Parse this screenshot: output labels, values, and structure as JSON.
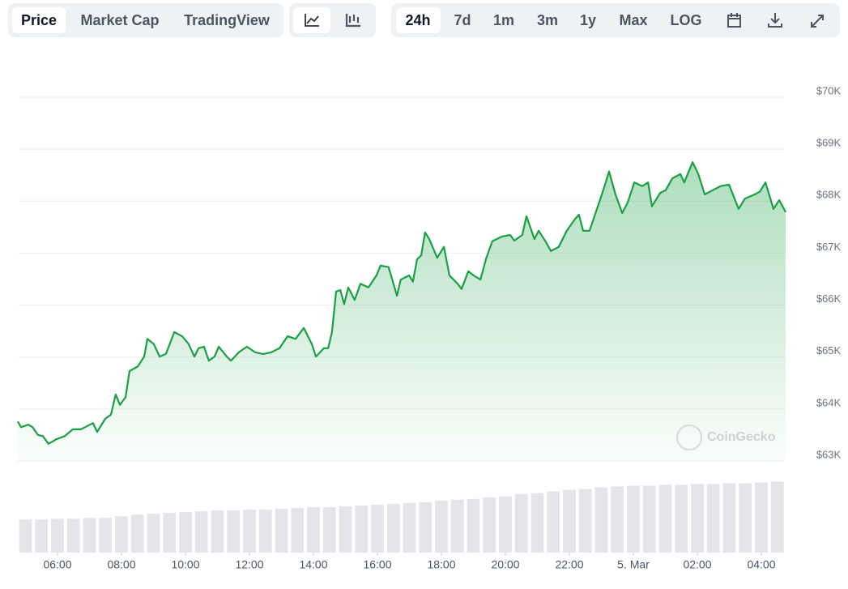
{
  "toolbar": {
    "view_tabs": [
      "Price",
      "Market Cap",
      "TradingView"
    ],
    "ranges": [
      "24h",
      "7d",
      "1m",
      "3m",
      "1y",
      "Max",
      "LOG"
    ]
  },
  "watermark": "CoinGecko",
  "chart_data": {
    "type": "area",
    "color": "#18a043",
    "grid": true,
    "xlim": [
      4.76,
      28.76
    ],
    "xticks": [
      {
        "value": 6,
        "label": "06:00"
      },
      {
        "value": 8,
        "label": "08:00"
      },
      {
        "value": 10,
        "label": "10:00"
      },
      {
        "value": 12,
        "label": "12:00"
      },
      {
        "value": 14,
        "label": "14:00"
      },
      {
        "value": 16,
        "label": "16:00"
      },
      {
        "value": 18,
        "label": "18:00"
      },
      {
        "value": 20,
        "label": "20:00"
      },
      {
        "value": 22,
        "label": "22:00"
      },
      {
        "value": 24,
        "label": "5. Mar"
      },
      {
        "value": 26,
        "label": "02:00"
      },
      {
        "value": 28,
        "label": "04:00"
      }
    ],
    "ylim": [
      63000,
      70500
    ],
    "yticks": [
      {
        "value": 63000,
        "label": "$63K"
      },
      {
        "value": 64000,
        "label": "$64K"
      },
      {
        "value": 65000,
        "label": "$65K"
      },
      {
        "value": 66000,
        "label": "$66K"
      },
      {
        "value": 67000,
        "label": "$67K"
      },
      {
        "value": 68000,
        "label": "$68K"
      },
      {
        "value": 69000,
        "label": "$69K"
      },
      {
        "value": 70000,
        "label": "$70K"
      }
    ],
    "x": [
      4.76,
      4.86,
      5.09,
      5.22,
      5.39,
      5.54,
      5.72,
      5.97,
      6.23,
      6.48,
      6.73,
      6.86,
      7.11,
      7.24,
      7.49,
      7.67,
      7.82,
      7.95,
      8.13,
      8.25,
      8.51,
      8.71,
      8.81,
      9.01,
      9.19,
      9.39,
      9.65,
      9.9,
      10.1,
      10.28,
      10.41,
      10.58,
      10.73,
      10.91,
      11.04,
      11.29,
      11.42,
      11.67,
      11.92,
      12.18,
      12.43,
      12.68,
      12.94,
      13.19,
      13.44,
      13.7,
      13.95,
      14.08,
      14.33,
      14.46,
      14.58,
      14.71,
      14.84,
      14.96,
      15.09,
      15.29,
      15.47,
      15.72,
      15.97,
      16.1,
      16.35,
      16.61,
      16.73,
      16.99,
      17.11,
      17.24,
      17.37,
      17.49,
      17.62,
      17.87,
      18.08,
      18.25,
      18.51,
      18.63,
      18.84,
      19.01,
      19.22,
      19.39,
      19.59,
      19.9,
      20.15,
      20.28,
      20.53,
      20.66,
      20.91,
      21.04,
      21.29,
      21.42,
      21.67,
      21.92,
      22.18,
      22.3,
      22.43,
      22.63,
      22.89,
      23.06,
      23.24,
      23.44,
      23.65,
      23.82,
      24.03,
      24.28,
      24.46,
      24.58,
      24.84,
      25.01,
      25.22,
      25.47,
      25.59,
      25.85,
      26.03,
      26.23,
      26.48,
      26.73,
      26.99,
      27.29,
      27.49,
      27.8,
      27.95,
      28.13,
      28.38,
      28.56,
      28.76
    ],
    "values": [
      63760,
      63650,
      63700,
      63650,
      63500,
      63480,
      63330,
      63420,
      63480,
      63610,
      63610,
      63650,
      63730,
      63560,
      63810,
      63890,
      64280,
      64080,
      64230,
      64730,
      64820,
      65010,
      65350,
      65250,
      65010,
      65060,
      65480,
      65400,
      65250,
      65010,
      65170,
      65200,
      64930,
      65010,
      65200,
      65010,
      64930,
      65090,
      65200,
      65090,
      65060,
      65090,
      65170,
      65400,
      65350,
      65560,
      65250,
      65010,
      65170,
      65170,
      65480,
      66260,
      66290,
      66020,
      66340,
      66100,
      66410,
      66340,
      66570,
      66760,
      66730,
      66180,
      66490,
      66570,
      66450,
      66880,
      66960,
      67400,
      67270,
      66910,
      67120,
      66570,
      66410,
      66310,
      66650,
      66570,
      66490,
      66880,
      67230,
      67320,
      67350,
      67240,
      67350,
      67710,
      67270,
      67430,
      67190,
      67040,
      67120,
      67430,
      67660,
      67740,
      67430,
      67430,
      67900,
      68210,
      68570,
      68130,
      67770,
      67970,
      68360,
      68290,
      68360,
      67900,
      68160,
      68210,
      68440,
      68520,
      68360,
      68750,
      68520,
      68130,
      68210,
      68290,
      68320,
      67850,
      68050,
      68130,
      68180,
      68360,
      67850,
      68020,
      67790
    ],
    "y2lim": [
      0,
      110
    ],
    "volume": {
      "x": [
        5.0,
        5.5,
        6.0,
        6.5,
        7.0,
        7.5,
        8.0,
        8.5,
        9.0,
        9.5,
        10.0,
        10.5,
        11.0,
        11.5,
        12.0,
        12.5,
        13.0,
        13.5,
        14.0,
        14.5,
        15.0,
        15.5,
        16.0,
        16.5,
        17.0,
        17.5,
        18.0,
        18.5,
        19.0,
        19.5,
        20.0,
        20.5,
        21.0,
        21.5,
        22.0,
        22.5,
        23.0,
        23.5,
        24.0,
        24.5,
        25.0,
        25.5,
        26.0,
        26.5,
        27.0,
        27.5,
        28.0,
        28.5
      ],
      "values": [
        40,
        40,
        41,
        41,
        42,
        42,
        44,
        46,
        47,
        48,
        49,
        50,
        51,
        51,
        52,
        52,
        53,
        54,
        55,
        55,
        56,
        57,
        58,
        59,
        60,
        61,
        63,
        64,
        65,
        67,
        68,
        71,
        72,
        74,
        76,
        77,
        79,
        80,
        81,
        81,
        82,
        82,
        83,
        83,
        84,
        84,
        85,
        86
      ],
      "axis": "y2",
      "color": "#e3e5e8"
    }
  }
}
